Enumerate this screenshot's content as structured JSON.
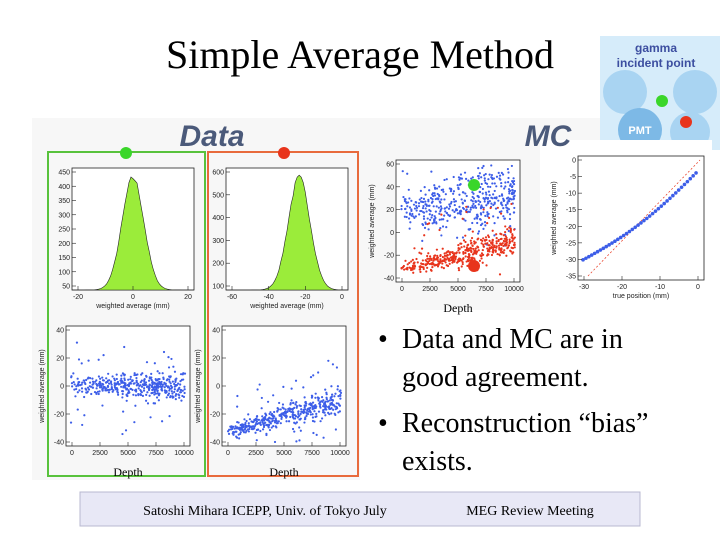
{
  "title": "Simple Average Method",
  "inset": {
    "line1": "gamma",
    "line2": "incident point",
    "pmt": "PMT"
  },
  "panels": {
    "data_label": "Data",
    "mc_label": "MC"
  },
  "plots": [
    {
      "yticks": [
        "450",
        "400",
        "350",
        "300",
        "250",
        "200",
        "150",
        "100",
        "50"
      ],
      "xticks": [
        "-20",
        "0",
        "20"
      ],
      "xlabel": "weighted average (mm)"
    },
    {
      "yticks": [
        "600",
        "500",
        "400",
        "300",
        "200",
        "100"
      ],
      "xticks": [
        "-60",
        "-40",
        "-20",
        "0"
      ],
      "xlabel": "weighted average (mm)"
    },
    {
      "yticks": [
        "40",
        "20",
        "0",
        "-20",
        "-40"
      ],
      "xticks": [
        "0",
        "2500",
        "5000",
        "7500",
        "10000"
      ],
      "ylabel": "weighted average (mm)",
      "depth": "Depth"
    },
    {
      "yticks": [
        "40",
        "20",
        "0",
        "-20",
        "-40"
      ],
      "xticks": [
        "0",
        "2500",
        "5000",
        "7500",
        "10000"
      ],
      "ylabel": "weighted average (mm)",
      "depth": "Depth"
    },
    {
      "yticks": [
        "60",
        "40",
        "20",
        "0",
        "-20",
        "-40"
      ],
      "xticks": [
        "0",
        "2500",
        "5000",
        "7500",
        "10000"
      ],
      "ylabel": "weighted average (mm)",
      "depth": "Depth"
    },
    {
      "yticks": [
        "0",
        "-5",
        "-10",
        "-15",
        "-20",
        "-25",
        "-30",
        "-35"
      ],
      "xticks": [
        "-30",
        "-20",
        "-10",
        "0"
      ],
      "xlabel": "true position (mm)",
      "ylabel": "weighted average (mm)"
    }
  ],
  "bullets": [
    "Data and MC are in good agreement.",
    "Reconstruction “bias” exists."
  ],
  "footer": {
    "left": "Satoshi Mihara ICEPP, Univ. of Tokyo July",
    "right": "MEG Review Meeting"
  }
}
